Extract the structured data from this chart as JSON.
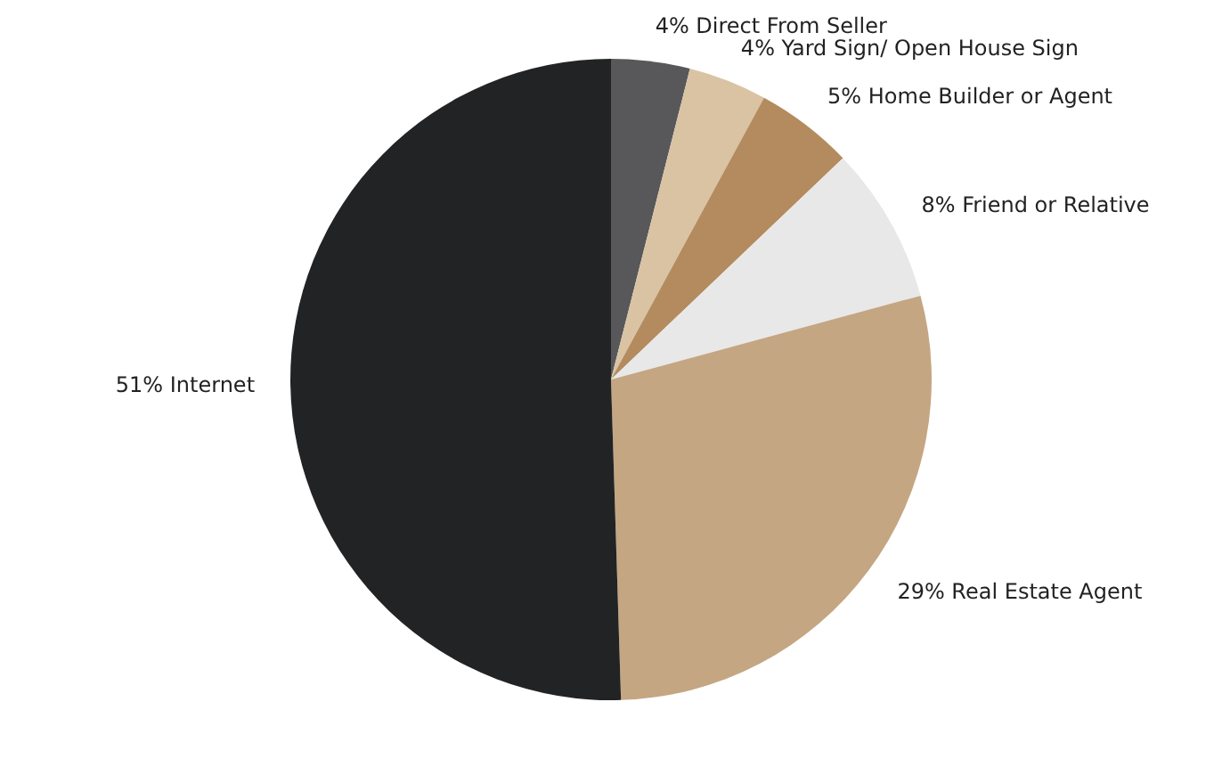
{
  "chart_data": {
    "type": "pie",
    "categories": [
      "Direct From Seller",
      "Yard Sign/ Open House Sign",
      "Home Builder or Agent",
      "Friend or Relative",
      "Real Estate Agent",
      "Internet"
    ],
    "values": [
      4,
      4,
      5,
      8,
      29,
      51
    ],
    "value_labels": [
      "4%",
      "4%",
      "5%",
      "8%",
      "29%",
      "51%"
    ],
    "colors": [
      "#58585a",
      "#d9c3a3",
      "#b38b5e",
      "#e8e8e8",
      "#c4a682",
      "#222324"
    ]
  }
}
